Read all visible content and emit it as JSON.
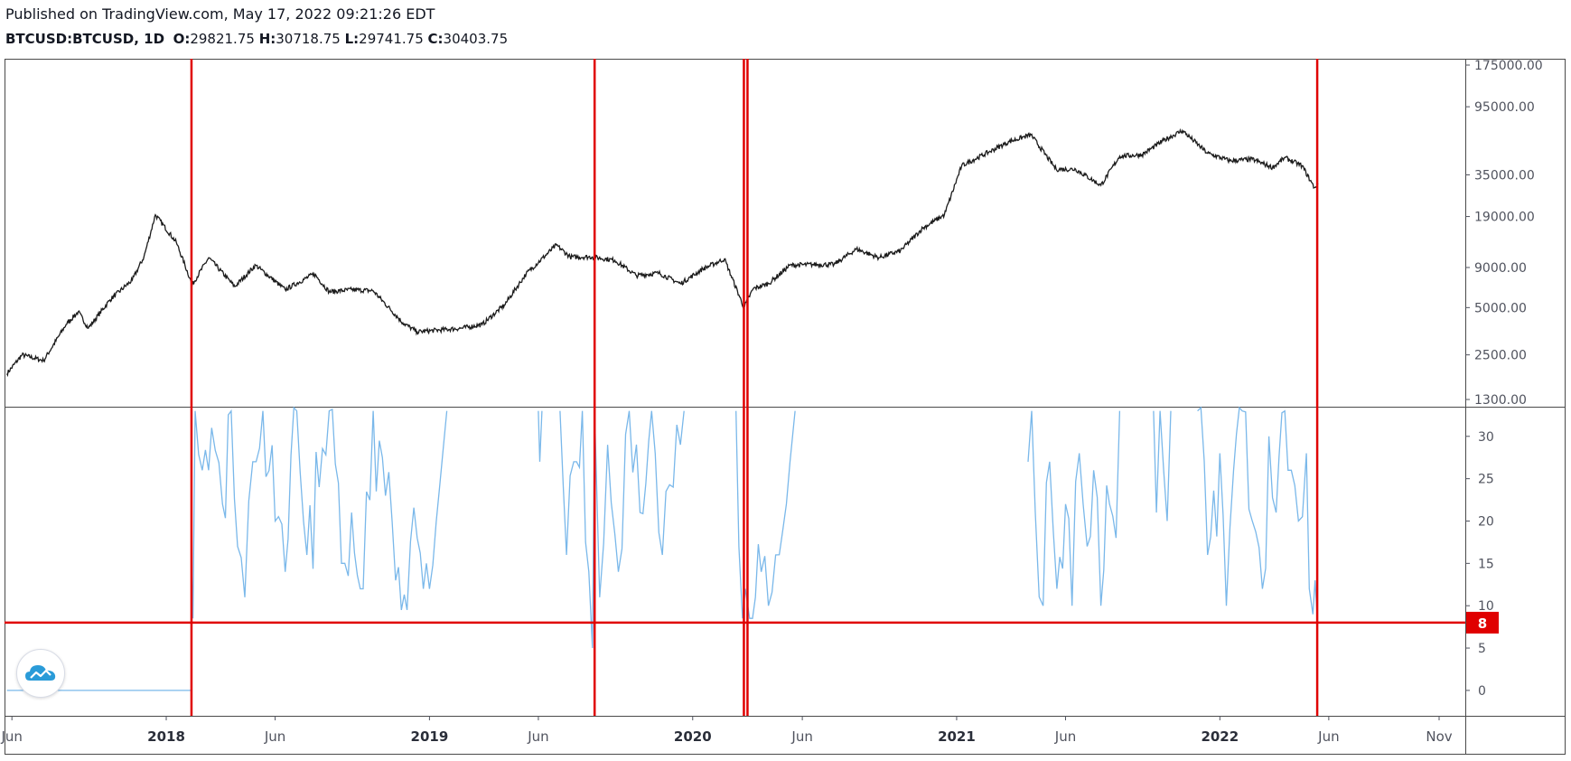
{
  "header": {
    "published": "Published on TradingView.com, May 17, 2022 09:21:26 EDT",
    "symbol": "BTCUSD:BTCUSD, 1D",
    "ohlc": {
      "o_label": "O:",
      "o": "29821.75",
      "h_label": "H:",
      "h": "30718.75",
      "l_label": "L:",
      "l": "29741.75",
      "c_label": "C:",
      "c": "30403.75"
    }
  },
  "colors": {
    "price_line": "#1b1b1b",
    "indicator_line": "#7ab8ea",
    "marker_red": "#e00000",
    "axis_text": "#50535e",
    "border": "#4a4a4a"
  },
  "chart_data": [
    {
      "type": "line",
      "panel": "price",
      "scale": "log",
      "ylim": [
        1300,
        175000
      ],
      "y_ticks": [
        "175000.00",
        "95000.00",
        "35000.00",
        "19000.00",
        "9000.00",
        "5000.00",
        "2500.00",
        "1300.00"
      ],
      "series": [
        {
          "x": [
            "2017-05-25",
            "2017-06-15",
            "2017-07-15",
            "2017-08-15",
            "2017-09-01",
            "2017-09-15",
            "2017-10-15",
            "2017-11-15",
            "2017-12-01",
            "2017-12-17",
            "2018-01-15",
            "2018-02-06",
            "2018-03-01",
            "2018-04-06",
            "2018-05-05",
            "2018-06-15",
            "2018-07-25",
            "2018-08-15",
            "2018-09-15",
            "2018-10-15",
            "2018-11-25",
            "2018-12-15",
            "2019-01-15",
            "2019-02-15",
            "2019-03-15",
            "2019-04-15",
            "2019-05-15",
            "2019-06-26",
            "2019-07-15",
            "2019-08-15",
            "2019-09-15",
            "2019-10-15",
            "2019-11-15",
            "2019-12-15",
            "2020-01-15",
            "2020-02-14",
            "2020-03-12",
            "2020-03-25",
            "2020-04-15",
            "2020-05-15",
            "2020-06-15",
            "2020-07-15",
            "2020-08-15",
            "2020-09-15",
            "2020-10-15",
            "2020-11-15",
            "2020-12-15",
            "2021-01-08",
            "2021-02-15",
            "2021-03-15",
            "2021-04-14",
            "2021-05-19",
            "2021-06-15",
            "2021-07-20",
            "2021-08-15",
            "2021-09-15",
            "2021-10-15",
            "2021-11-10",
            "2021-12-15",
            "2022-01-15",
            "2022-02-15",
            "2022-03-15",
            "2022-04-01",
            "2022-04-25",
            "2022-05-12",
            "2022-05-17"
          ],
          "values": [
            1900,
            2500,
            2300,
            3900,
            4700,
            3700,
            5600,
            7500,
            10500,
            19500,
            13000,
            7000,
            10400,
            6800,
            9300,
            6500,
            8200,
            6300,
            6500,
            6400,
            4000,
            3500,
            3600,
            3700,
            3900,
            5200,
            8200,
            12500,
            10500,
            10500,
            10000,
            8000,
            8300,
            7100,
            8800,
            10200,
            5000,
            6600,
            7100,
            9300,
            9400,
            9400,
            11800,
            10400,
            11500,
            16000,
            19500,
            40000,
            49000,
            57000,
            63000,
            38000,
            38000,
            30000,
            46000,
            47000,
            58000,
            67000,
            48000,
            43000,
            44000,
            39000,
            45000,
            40000,
            29000,
            30400
          ]
        }
      ]
    },
    {
      "type": "line",
      "panel": "indicator",
      "ylim": [
        -3,
        33.5
      ],
      "y_ticks": [
        "30",
        "25",
        "20",
        "15",
        "10",
        "5",
        "0"
      ],
      "level": 8,
      "level_label": "8",
      "segments": [
        {
          "x": [
            "2017-05-25",
            "2018-02-04"
          ],
          "values": [
            0,
            0
          ]
        },
        {
          "x": [
            "2018-02-05",
            "2018-02-07",
            "2018-02-10",
            "2018-02-20",
            "2018-03-05",
            "2018-03-20",
            "2018-04-01",
            "2018-04-10",
            "2018-04-20",
            "2018-05-01",
            "2018-05-15",
            "2018-06-01",
            "2018-06-15",
            "2018-07-01",
            "2018-07-15",
            "2018-08-01",
            "2018-08-15",
            "2018-09-01",
            "2018-09-15",
            "2018-10-01",
            "2018-10-15",
            "2018-11-01",
            "2018-11-15",
            "2018-12-01",
            "2018-12-15",
            "2019-01-01",
            "2019-01-15",
            "2019-01-25"
          ],
          "values": [
            15,
            8.5,
            33,
            26,
            31,
            22,
            33,
            17,
            11,
            27,
            33,
            20,
            14,
            33,
            16,
            24,
            33,
            15,
            21,
            12,
            33,
            23,
            13,
            9.5,
            18,
            12,
            24,
            33
          ]
        },
        {
          "x": [
            "2019-06-01",
            "2019-06-03",
            "2019-06-06"
          ],
          "values": [
            33,
            27,
            33
          ]
        },
        {
          "x": [
            "2019-07-01",
            "2019-07-10",
            "2019-07-20",
            "2019-08-01",
            "2019-08-10",
            "2019-08-15",
            "2019-08-18",
            "2019-08-25",
            "2019-09-05",
            "2019-09-20",
            "2019-10-05",
            "2019-10-20",
            "2019-11-05",
            "2019-11-20",
            "2019-12-05",
            "2019-12-20"
          ],
          "values": [
            33,
            16,
            27,
            33,
            14,
            5,
            33,
            11,
            29,
            14,
            33,
            21,
            33,
            16,
            24,
            33
          ]
        },
        {
          "x": [
            "2020-03-01",
            "2020-03-05",
            "2020-03-10",
            "2020-03-14",
            "2020-03-20",
            "2020-03-28",
            "2020-04-05",
            "2020-04-15",
            "2020-04-25",
            "2020-05-05",
            "2020-05-15",
            "2020-05-22"
          ],
          "values": [
            33,
            17,
            8.5,
            12,
            8.5,
            11,
            14,
            10,
            16,
            19,
            27,
            33
          ]
        },
        {
          "x": [
            "2021-04-10",
            "2021-04-15",
            "2021-04-20",
            "2021-05-01",
            "2021-05-10",
            "2021-05-20",
            "2021-06-01",
            "2021-06-10",
            "2021-06-20",
            "2021-07-01",
            "2021-07-10",
            "2021-07-20",
            "2021-08-01",
            "2021-08-10",
            "2021-08-15"
          ],
          "values": [
            27,
            33,
            21,
            10,
            27,
            12,
            22,
            10,
            28,
            17,
            26,
            10,
            22,
            18,
            33
          ]
        },
        {
          "x": [
            "2021-10-01",
            "2021-10-05",
            "2021-10-10",
            "2021-10-15",
            "2021-10-20",
            "2021-10-25"
          ],
          "values": [
            33,
            21,
            33,
            26,
            20,
            33
          ]
        },
        {
          "x": [
            "2021-12-01",
            "2021-12-15",
            "2022-01-01",
            "2022-01-10",
            "2022-01-20",
            "2022-02-01",
            "2022-02-15",
            "2022-03-01",
            "2022-03-10",
            "2022-03-20",
            "2022-04-01",
            "2022-04-10",
            "2022-04-20",
            "2022-05-01",
            "2022-05-05",
            "2022-05-10",
            "2022-05-13",
            "2022-05-16"
          ],
          "values": [
            33,
            16,
            28,
            10,
            26,
            33,
            20,
            12,
            30,
            21,
            33,
            26,
            20,
            28,
            12,
            9,
            13,
            8.5
          ]
        }
      ]
    }
  ],
  "vertical_markers": [
    "2018-02-05",
    "2019-08-18",
    "2020-03-12",
    "2020-03-17",
    "2022-05-16"
  ],
  "x_axis": {
    "ticks": [
      {
        "date": "2017-06-01",
        "label": "Jun",
        "bold": false
      },
      {
        "date": "2018-01-01",
        "label": "2018",
        "bold": true
      },
      {
        "date": "2018-06-01",
        "label": "Jun",
        "bold": false
      },
      {
        "date": "2019-01-01",
        "label": "2019",
        "bold": true
      },
      {
        "date": "2019-06-01",
        "label": "Jun",
        "bold": false
      },
      {
        "date": "2020-01-01",
        "label": "2020",
        "bold": true
      },
      {
        "date": "2020-06-01",
        "label": "Jun",
        "bold": false
      },
      {
        "date": "2021-01-01",
        "label": "2021",
        "bold": true
      },
      {
        "date": "2021-06-01",
        "label": "Jun",
        "bold": false
      },
      {
        "date": "2022-01-01",
        "label": "2022",
        "bold": true
      },
      {
        "date": "2022-06-01",
        "label": "Jun",
        "bold": false
      },
      {
        "date": "2022-11-01",
        "label": "Nov",
        "bold": false
      }
    ]
  },
  "logo": {
    "icon": "tradingview-cloud-icon"
  }
}
